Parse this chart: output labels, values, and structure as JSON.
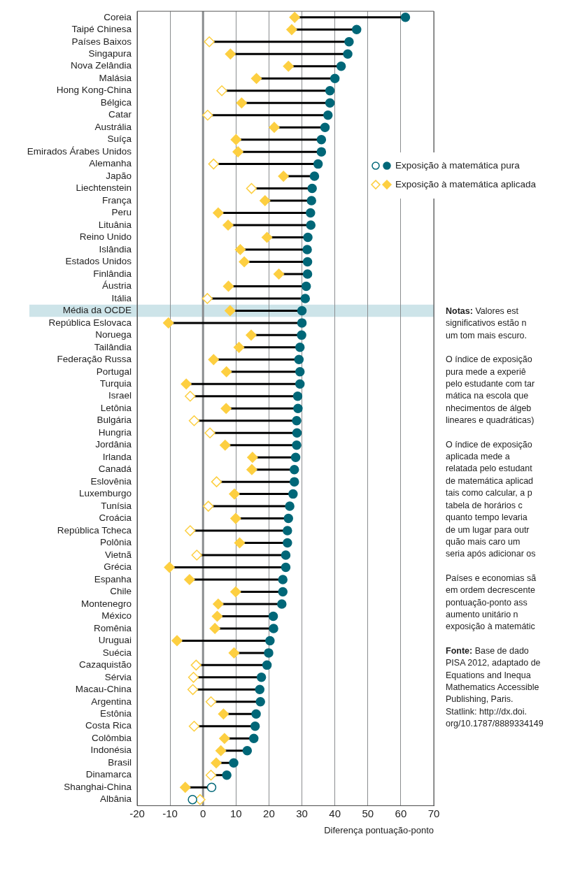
{
  "chart_data": {
    "type": "scatter",
    "orientation": "horizontal",
    "xlabel": "Diferença pontuação-ponto",
    "categories": [
      "Coreia",
      "Taipé Chinesa",
      "Países Baixos",
      "Singapura",
      "Nova Zelândia",
      "Malásia",
      "Hong Kong-China",
      "Bélgica",
      "Catar",
      "Austrália",
      "Suíça",
      "Emirados Árabes Unidos",
      "Alemanha",
      "Japão",
      "Liechtenstein",
      "França",
      "Peru",
      "Lituânia",
      "Reino Unido",
      "Islândia",
      "Estados Unidos",
      "Finlândia",
      "Áustria",
      "Itália",
      "Média da OCDE",
      "República Eslovaca",
      "Noruega",
      "Tailândia",
      "Federação Russa",
      "Portugal",
      "Turquia",
      "Israel",
      "Letônia",
      "Bulgária",
      "Hungria",
      "Jordânia",
      "Irlanda",
      "Canadá",
      "Eslovênia",
      "Luxemburgo",
      "Tunísia",
      "Croácia",
      "República Tcheca",
      "Polônia",
      "Vietnã",
      "Grécia",
      "Espanha",
      "Chile",
      "Montenegro",
      "México",
      "Romênia",
      "Uruguai",
      "Suécia",
      "Cazaquistão",
      "Sérvia",
      "Macau-China",
      "Argentina",
      "Estônia",
      "Costa Rica",
      "Colômbia",
      "Indonésia",
      "Brasil",
      "Dinamarca",
      "Shanghai-China",
      "Albânia"
    ],
    "series": [
      {
        "name": "Exposição à matemática pura",
        "color": "#006778",
        "marker": "circle",
        "values": [
          61.4,
          46.6,
          44.3,
          43.9,
          41.9,
          40.0,
          38.5,
          38.5,
          37.9,
          37.0,
          35.9,
          35.9,
          34.9,
          33.8,
          33.1,
          32.9,
          32.6,
          32.7,
          31.8,
          31.6,
          31.7,
          31.7,
          31.3,
          31.0,
          30.0,
          30.0,
          29.9,
          29.4,
          29.1,
          29.4,
          29.4,
          28.7,
          28.8,
          28.4,
          28.5,
          28.4,
          28.1,
          27.7,
          27.7,
          27.3,
          26.3,
          25.9,
          25.6,
          25.6,
          25.1,
          25.1,
          24.2,
          24.2,
          23.9,
          21.3,
          21.4,
          20.3,
          19.9,
          19.4,
          17.7,
          17.2,
          17.4,
          16.1,
          15.8,
          15.4,
          13.4,
          9.3,
          7.2,
          2.6,
          -3.2
        ],
        "colors": [
          "#006778",
          "#006778",
          "#006778",
          "#006778",
          "#006778",
          "#006778",
          "#006778",
          "#006778",
          "#006778",
          "#006778",
          "#006778",
          "#006778",
          "#006778",
          "#006778",
          "#006778",
          "#006778",
          "#006778",
          "#006778",
          "#006778",
          "#006778",
          "#006778",
          "#006778",
          "#006778",
          "#006778",
          "#006778",
          "#006778",
          "#006778",
          "#006778",
          "#006778",
          "#006778",
          "#006778",
          "#006778",
          "#006778",
          "#006778",
          "#006778",
          "#006778",
          "#006778",
          "#006778",
          "#006778",
          "#006778",
          "#006778",
          "#006778",
          "#006778",
          "#006778",
          "#006778",
          "#006778",
          "#006778",
          "#006778",
          "#006778",
          "#006778",
          "#006778",
          "#006778",
          "#006778",
          "#006778",
          "#006778",
          "#006778",
          "#006778",
          "#006778",
          "#006778",
          "#006778",
          "#006778",
          "#006778",
          "#006778",
          "#ffffff",
          "#ffffff"
        ]
      },
      {
        "name": "Exposição à matemática aplicada",
        "color": "#fdcf41",
        "marker": "diamond",
        "values": [
          27.8,
          26.9,
          1.9,
          8.3,
          25.9,
          16.2,
          5.7,
          11.7,
          1.4,
          21.6,
          10.0,
          10.6,
          3.2,
          24.4,
          14.7,
          18.8,
          4.6,
          7.6,
          19.4,
          11.3,
          12.5,
          23.0,
          7.7,
          1.3,
          8.2,
          -10.5,
          14.6,
          10.9,
          3.2,
          7.1,
          -5.1,
          -3.9,
          7.0,
          -2.7,
          2.1,
          6.7,
          15.0,
          14.8,
          4.1,
          9.5,
          1.6,
          9.9,
          -3.9,
          11.1,
          -1.9,
          -10.2,
          -4.1,
          9.9,
          4.6,
          4.3,
          3.6,
          -7.9,
          9.4,
          -2.1,
          -2.9,
          -3.1,
          2.4,
          6.2,
          -2.7,
          6.5,
          5.4,
          4.0,
          2.4,
          -5.4,
          -0.9
        ],
        "colors": [
          "#fdcf41",
          "#fdcf41",
          "#ffffff",
          "#fdcf41",
          "#fdcf41",
          "#fdcf41",
          "#ffffff",
          "#fdcf41",
          "#ffffff",
          "#fdcf41",
          "#fdcf41",
          "#fdcf41",
          "#ffffff",
          "#fdcf41",
          "#ffffff",
          "#fdcf41",
          "#fdcf41",
          "#fdcf41",
          "#fdcf41",
          "#fdcf41",
          "#fdcf41",
          "#fdcf41",
          "#fdcf41",
          "#ffffff",
          "#fdcf41",
          "#fdcf41",
          "#fdcf41",
          "#fdcf41",
          "#fdcf41",
          "#fdcf41",
          "#fdcf41",
          "#ffffff",
          "#fdcf41",
          "#ffffff",
          "#ffffff",
          "#fdcf41",
          "#fdcf41",
          "#fdcf41",
          "#ffffff",
          "#fdcf41",
          "#ffffff",
          "#fdcf41",
          "#ffffff",
          "#fdcf41",
          "#ffffff",
          "#fdcf41",
          "#fdcf41",
          "#fdcf41",
          "#fdcf41",
          "#fdcf41",
          "#fdcf41",
          "#fdcf41",
          "#fdcf41",
          "#ffffff",
          "#ffffff",
          "#ffffff",
          "#ffffff",
          "#fdcf41",
          "#ffffff",
          "#fdcf41",
          "#fdcf41",
          "#fdcf41",
          "#ffffff",
          "#fdcf41",
          "#ffffff"
        ]
      }
    ],
    "xlim": [
      -20,
      70
    ],
    "xticks": [
      -20,
      -10,
      0,
      10,
      20,
      30,
      40,
      50,
      60,
      70
    ],
    "grid": "x",
    "legend": "right",
    "ref_lines": [
      {
        "axis": "x",
        "value": 0,
        "color": "#8a8d8f"
      }
    ],
    "bands": [
      {
        "axis": "y",
        "from": "Média da OCDE",
        "to": "Média da OCDE",
        "color": "#cde4e9"
      }
    ],
    "annotations": [
      "Notas: Valores est\nsignificativos estão n\num tom mais escuro.",
      "O índice de exposição\npura mede a experiê\npelo estudante com tar\nmática na escola que\nnhecimentos de álgeb\nlineares e quadráticas)",
      "O índice de exposição\naplicada mede a\nrelatada pelo estudant\nde matemática aplicad\ntais como calcular, a p\ntabela de horários c\nquanto tempo levaria\nde um lugar para outr\nquão mais caro um\nseria após adicionar os",
      "Países e economias sã\nem ordem decrescente\npontuação-ponto ass\naumento unitário n\nexposição à matemátic",
      "Fonte: Base de dado\nPISA 2012, adaptado de\nEquations and Inequa\nMathematics Accessible\nPublishing, Paris.\nStatlink: http://dx.doi.\norg/10.1787/8889334149"
    ]
  }
}
